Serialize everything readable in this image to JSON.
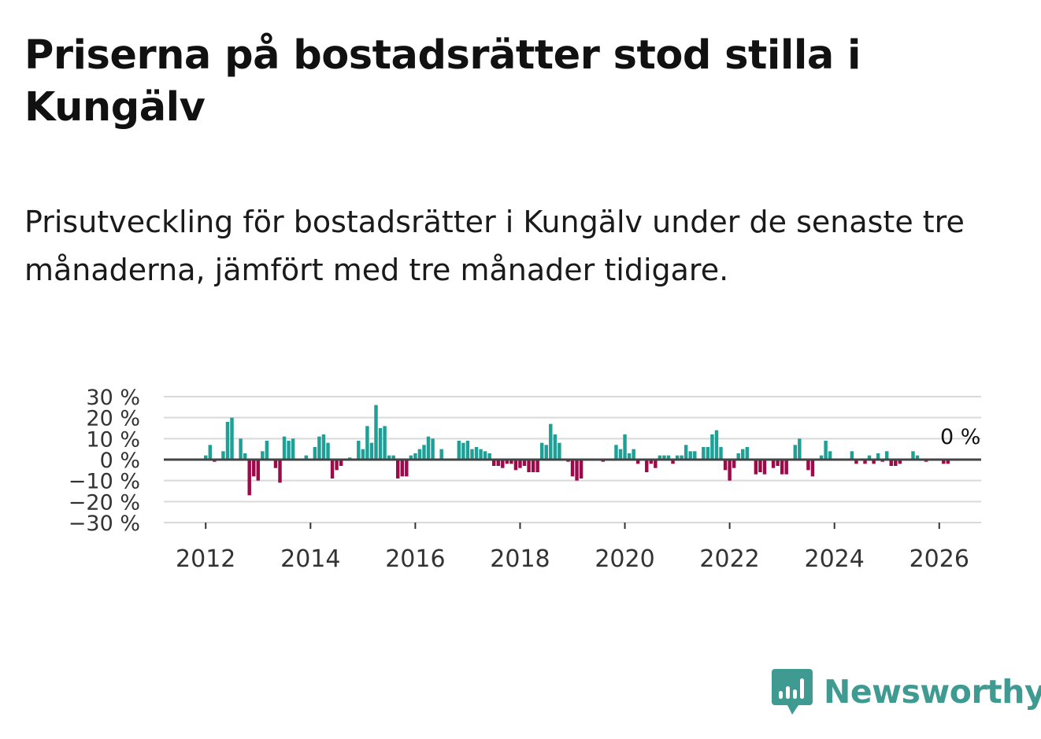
{
  "title": "Priserna på bostadsrätter stod stilla i Kungälv",
  "subtitle": "Prisutveckling för bostadsrätter i Kungälv under de senaste tre månaderna, jämfört med tre månader tidigare.",
  "brand": {
    "name": "Newsworthy",
    "color": "#3f9a92"
  },
  "colors": {
    "positive": "#1fa096",
    "negative": "#9c0a4a",
    "grid": "#d9d9d9",
    "zero_line": "#444444"
  },
  "chart_data": {
    "type": "bar",
    "title": "Priserna på bostadsrätter stod stilla i Kungälv",
    "xlabel": "",
    "ylabel": "",
    "ylim": [
      -30,
      30
    ],
    "yticks": [
      30,
      20,
      10,
      0,
      -10,
      -20,
      -30
    ],
    "ytick_labels": [
      "30 %",
      "20 %",
      "10 %",
      "0 %",
      "−10 %",
      "−20 %",
      "−30 %"
    ],
    "xlim": [
      2011.2,
      2026.8
    ],
    "xticks": [
      2012,
      2014,
      2016,
      2018,
      2020,
      2022,
      2024,
      2026
    ],
    "xtick_labels": [
      "2012",
      "2014",
      "2016",
      "2018",
      "2020",
      "2022",
      "2024",
      "2026"
    ],
    "grid": true,
    "last_value_label": "0 %",
    "series": [
      {
        "name": "Prisutveckling",
        "start": 2011.917,
        "step": 0.08333,
        "values": [
          0,
          2,
          7,
          -1,
          0,
          4,
          18,
          20,
          0,
          10,
          3,
          -17,
          -8,
          -10,
          4,
          9,
          0,
          -4,
          -11,
          11,
          9,
          10,
          0,
          0,
          2,
          0,
          6,
          11,
          12,
          8,
          -9,
          -5,
          -3,
          0,
          1,
          0,
          9,
          5,
          16,
          8,
          26,
          15,
          16,
          2,
          2,
          -9,
          -8,
          -8,
          2,
          3,
          5,
          7,
          11,
          10,
          0,
          5,
          0,
          0,
          0,
          9,
          8,
          9,
          5,
          6,
          5,
          4,
          3,
          -3,
          -3,
          -4,
          -2,
          -2,
          -5,
          -4,
          -3,
          -6,
          -6,
          -6,
          8,
          7,
          17,
          12,
          8,
          0,
          -1,
          -8,
          -10,
          -9,
          0,
          0,
          0,
          0,
          -1,
          0,
          0,
          7,
          5,
          12,
          3,
          5,
          -2,
          0,
          -6,
          -2,
          -4,
          2,
          2,
          2,
          -2,
          2,
          2,
          7,
          4,
          4,
          0,
          6,
          6,
          12,
          14,
          6,
          -5,
          -10,
          -4,
          3,
          5,
          6,
          0,
          -7,
          -6,
          -7,
          0,
          -4,
          -3,
          -7,
          -7,
          0,
          7,
          10,
          0,
          -5,
          -8,
          0,
          2,
          9,
          4,
          0,
          0,
          0,
          0,
          4,
          -2,
          0,
          -2,
          2,
          -2,
          3,
          -1,
          4,
          -3,
          -3,
          -2,
          0,
          0,
          4,
          2,
          0,
          -1,
          0,
          0,
          0,
          -2,
          -2,
          0
        ]
      }
    ]
  }
}
